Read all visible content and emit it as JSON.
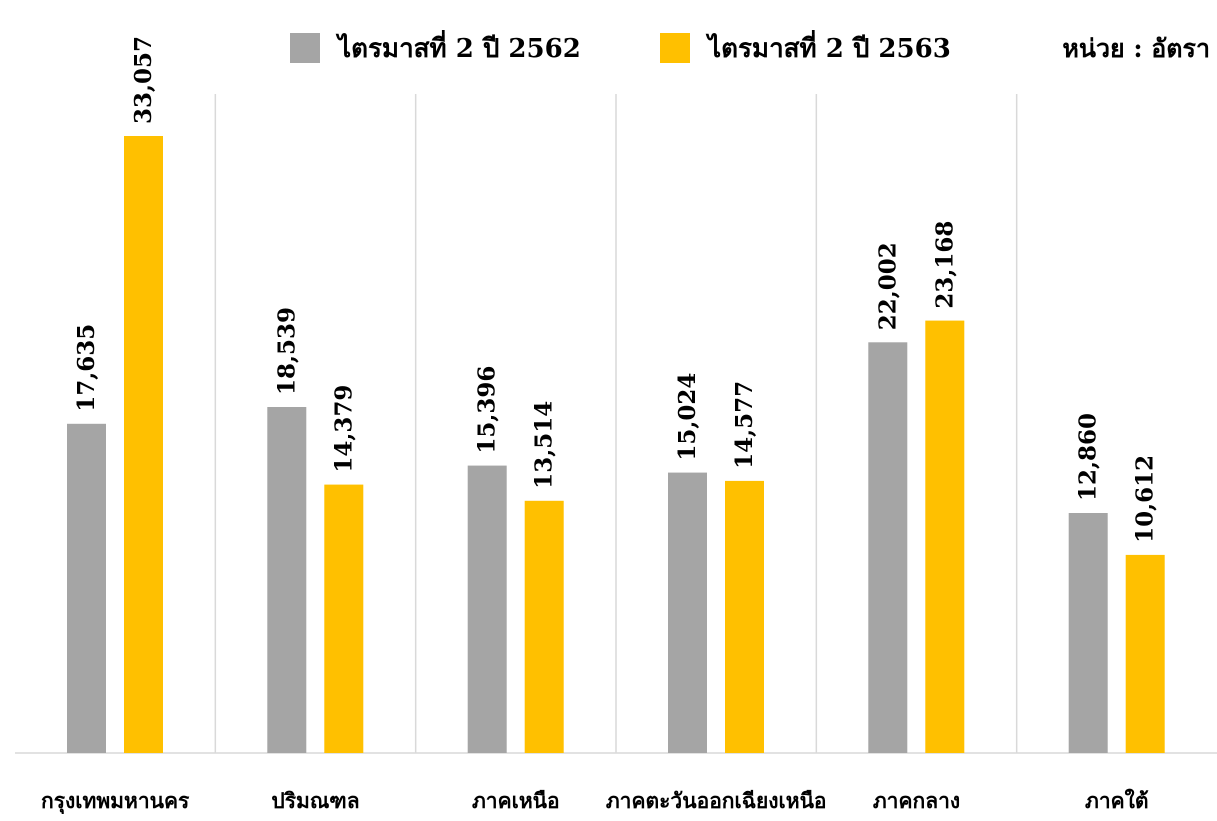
{
  "chart_data": {
    "type": "bar",
    "title": "",
    "xlabel": "",
    "ylabel": "",
    "unit_label": "หน่วย : อัตรา",
    "categories": [
      "กรุงเทพมหานคร",
      "ปริมณฑล",
      "ภาคเหนือ",
      "ภาคตะวันออกเฉียงเหนือ",
      "ภาคกลาง",
      "ภาคใต้"
    ],
    "series": [
      {
        "name": "ไตรมาสที่ 2 ปี 2562",
        "color": "#a5a5a5",
        "values": [
          17635,
          18539,
          15396,
          15024,
          22002,
          12860
        ],
        "labels": [
          "17,635",
          "18,539",
          "15,396",
          "15,024",
          "22,002",
          "12,860"
        ]
      },
      {
        "name": "ไตรมาสที่ 2 ปี 2563",
        "color": "#ffc000",
        "values": [
          33057,
          14379,
          13514,
          14577,
          23168,
          10612
        ],
        "labels": [
          "33,057",
          "14,379",
          "13,514",
          "14,577",
          "23,168",
          "10,612"
        ]
      }
    ],
    "ylim": [
      0,
      33057
    ],
    "grid": false,
    "category_separators": true,
    "legend_position": "top"
  }
}
